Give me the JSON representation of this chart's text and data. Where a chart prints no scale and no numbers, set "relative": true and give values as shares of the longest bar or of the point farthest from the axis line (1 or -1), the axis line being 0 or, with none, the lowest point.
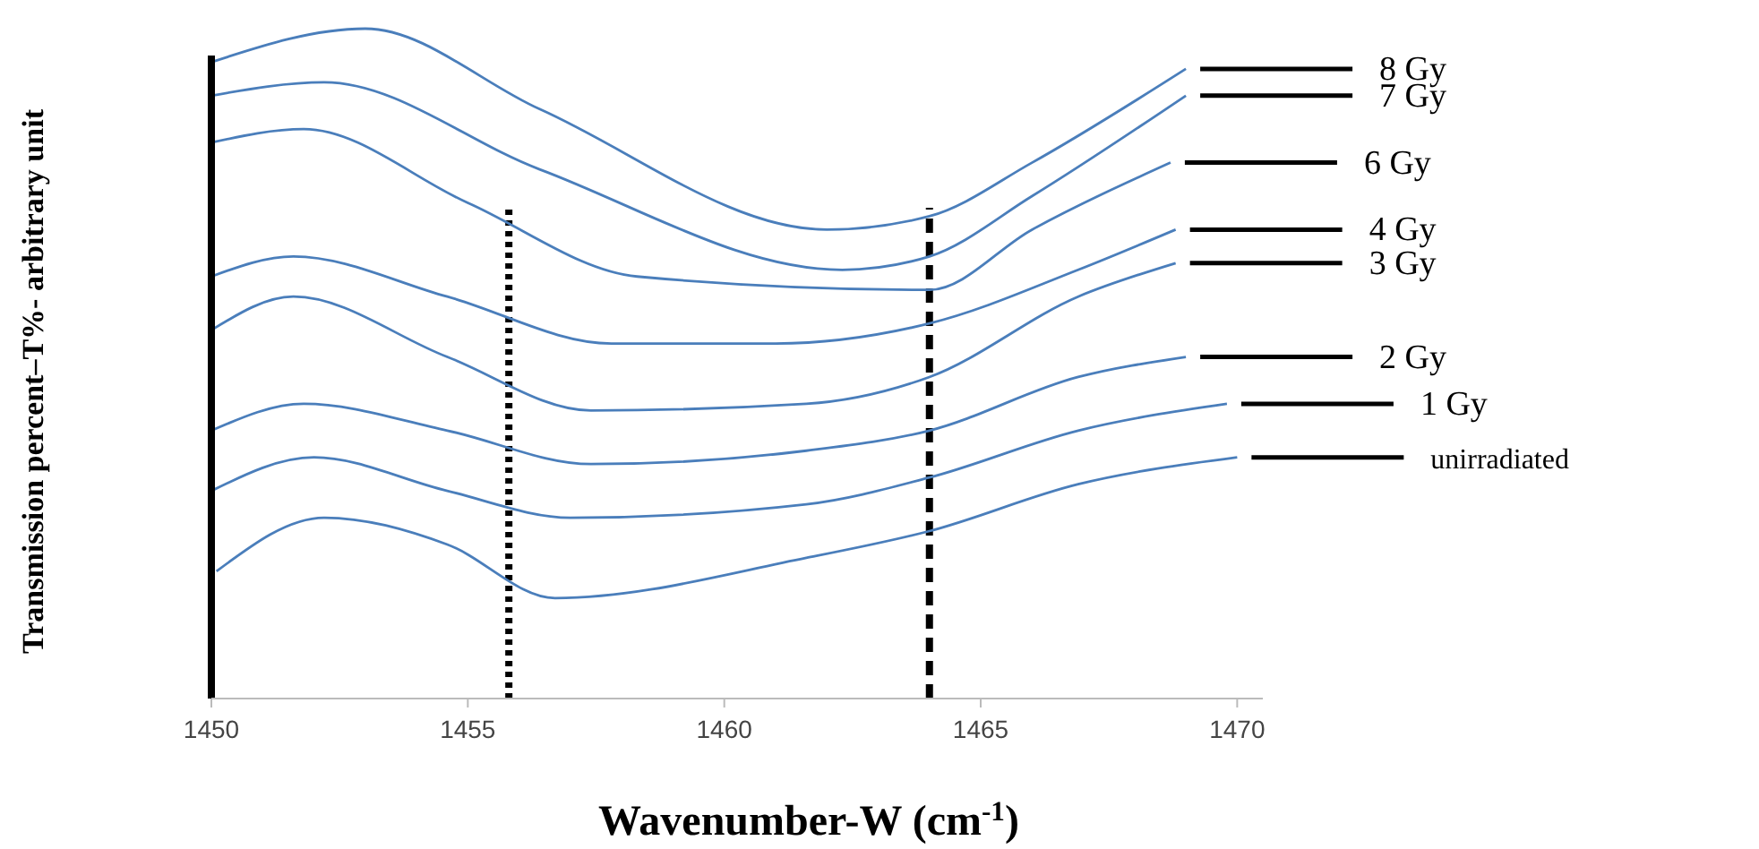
{
  "chart_data": {
    "type": "line",
    "relative": true,
    "xlabel": "Wavenumber-W (cm$^{-1}$)",
    "ylabel": "Transmission percent–T%- arbitrary unit",
    "xlim": [
      1450,
      1470.5
    ],
    "xticks": [
      1450,
      1455,
      1460,
      1465,
      1470
    ],
    "grid": false,
    "line_style": "solid",
    "series": [
      {
        "name": "8 Gy",
        "color": "#4a7ebb",
        "x": [
          1450,
          1453,
          1456.4,
          1462,
          1464,
          1466,
          1469
        ],
        "values": [
          0.95,
          1.0,
          0.88,
          0.7,
          0.72,
          0.8,
          0.94
        ]
      },
      {
        "name": "7 Gy",
        "color": "#4a7ebb",
        "x": [
          1450,
          1452.2,
          1456.4,
          1462.3,
          1464,
          1466,
          1469
        ],
        "values": [
          0.9,
          0.92,
          0.79,
          0.64,
          0.66,
          0.75,
          0.9
        ]
      },
      {
        "name": "6 Gy",
        "color": "#4a7ebb",
        "x": [
          1450,
          1451.8,
          1455,
          1458.3,
          1464,
          1466,
          1468.7
        ],
        "values": [
          0.83,
          0.85,
          0.74,
          0.63,
          0.61,
          0.7,
          0.8
        ]
      },
      {
        "name": "4 Gy",
        "color": "#4a7ebb",
        "x": [
          1450,
          1451.6,
          1454.6,
          1457.8,
          1461,
          1464,
          1466.9,
          1468.8
        ],
        "values": [
          0.63,
          0.66,
          0.6,
          0.53,
          0.53,
          0.56,
          0.64,
          0.7
        ]
      },
      {
        "name": "3 Gy",
        "color": "#4a7ebb",
        "x": [
          1450,
          1451.6,
          1454.6,
          1457.4,
          1461.6,
          1464,
          1466.9,
          1468.8
        ],
        "values": [
          0.55,
          0.6,
          0.51,
          0.43,
          0.44,
          0.48,
          0.6,
          0.65
        ]
      },
      {
        "name": "2 Gy",
        "color": "#4a7ebb",
        "x": [
          1450,
          1451.8,
          1454.6,
          1457.4,
          1461.6,
          1464,
          1466.9,
          1469
        ],
        "values": [
          0.4,
          0.44,
          0.4,
          0.35,
          0.37,
          0.4,
          0.48,
          0.51
        ]
      },
      {
        "name": "1 Gy",
        "color": "#4a7ebb",
        "x": [
          1450,
          1452,
          1454.6,
          1457,
          1461.6,
          1464,
          1466.9,
          1469.8
        ],
        "values": [
          0.31,
          0.36,
          0.31,
          0.27,
          0.29,
          0.33,
          0.4,
          0.44
        ]
      },
      {
        "name": "unirradiated",
        "color": "#4a7ebb",
        "x": [
          1450.1,
          1452.2,
          1454.6,
          1456.7,
          1461.6,
          1464,
          1466.9,
          1470
        ],
        "values": [
          0.19,
          0.27,
          0.23,
          0.15,
          0.21,
          0.25,
          0.32,
          0.36
        ]
      }
    ],
    "ref_lines": [
      {
        "axis": "x",
        "value": 1455.8,
        "color": "#000000",
        "line_style": "dotted"
      },
      {
        "axis": "x",
        "value": 1464,
        "color": "#000000",
        "line_style": "dashed"
      }
    ]
  }
}
